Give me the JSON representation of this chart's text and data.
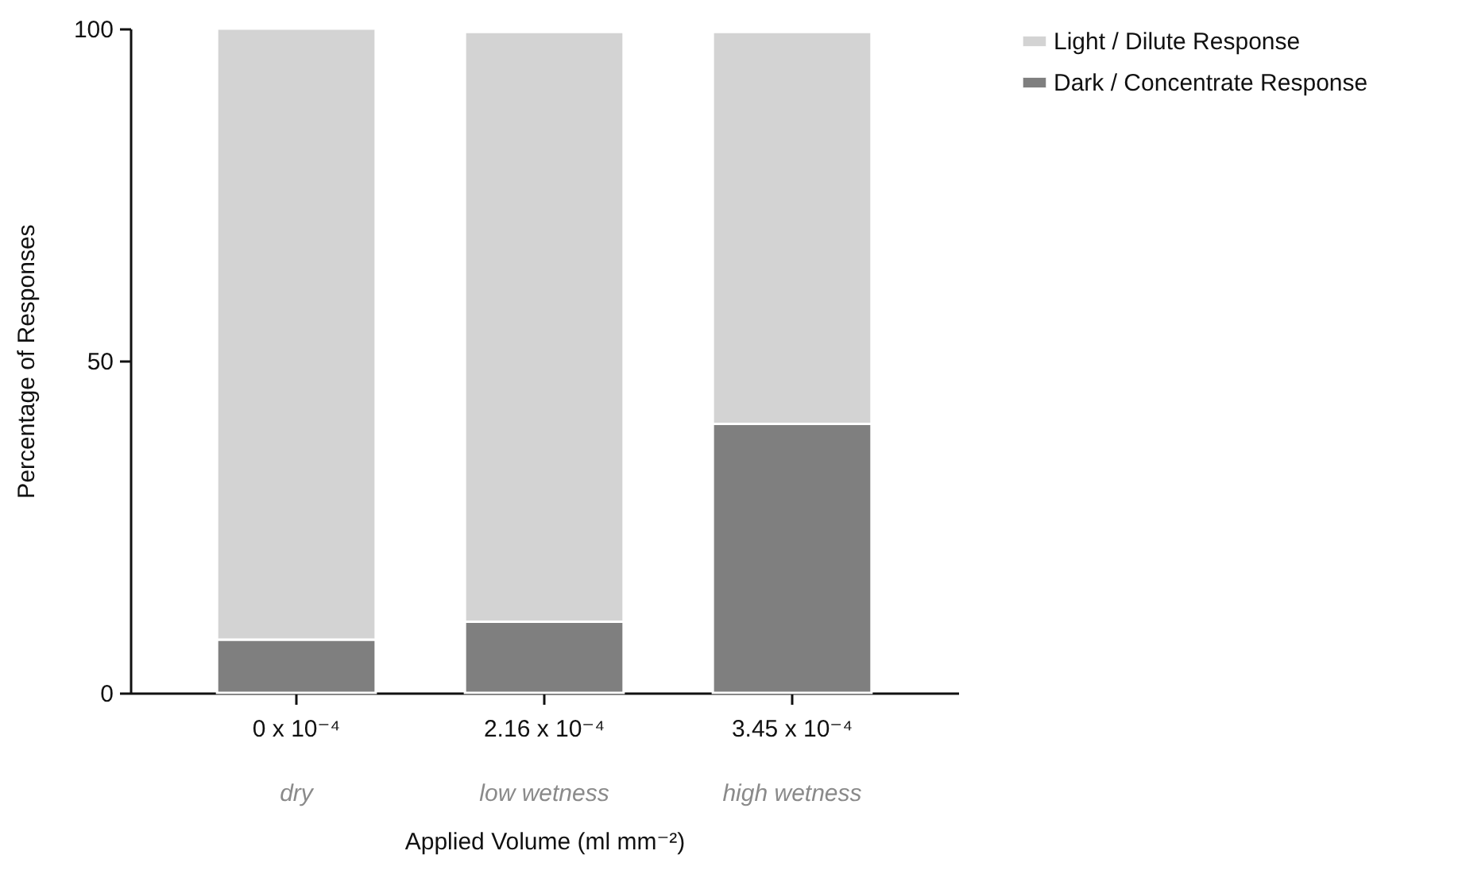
{
  "chart_data": {
    "type": "bar",
    "stacked": true,
    "xlabel": "Applied Volume (ml mm⁻²)",
    "ylabel": "Percentage of Responses",
    "categories": [
      "0 x 10⁻⁴",
      "2.16 x 10⁻⁴",
      "3.45 x 10⁻⁴"
    ],
    "annotations": [
      "dry",
      "low wetness",
      "high wetness"
    ],
    "series": [
      {
        "name": "Dark / Concentrate Response",
        "color": "#7f7f7f",
        "values": [
          8,
          10.7,
          40.5
        ]
      },
      {
        "name": "Light / Dilute Response",
        "color": "#d3d3d3",
        "values": [
          92,
          88.8,
          59
        ]
      }
    ],
    "ylim": [
      0,
      100
    ],
    "yticks": [
      0,
      50,
      100
    ],
    "grid": false,
    "legend": "top right"
  }
}
